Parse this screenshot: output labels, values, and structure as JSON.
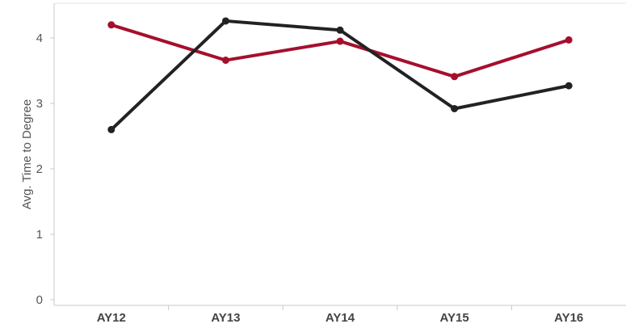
{
  "chart_data": {
    "type": "line",
    "categories": [
      "AY12",
      "AY13",
      "AY14",
      "AY15",
      "AY16"
    ],
    "ylabel": "Avg. Time to Degree",
    "xlabel": "",
    "ylim": [
      0,
      4.4
    ],
    "yticks": [
      0,
      1,
      2,
      3,
      4
    ],
    "grid": false,
    "series": [
      {
        "color": "#a50f2d",
        "values": [
          4.2,
          3.66,
          3.95,
          3.41,
          3.97
        ]
      },
      {
        "color": "#222222",
        "values": [
          2.6,
          4.26,
          4.12,
          2.92,
          3.27
        ]
      }
    ]
  }
}
